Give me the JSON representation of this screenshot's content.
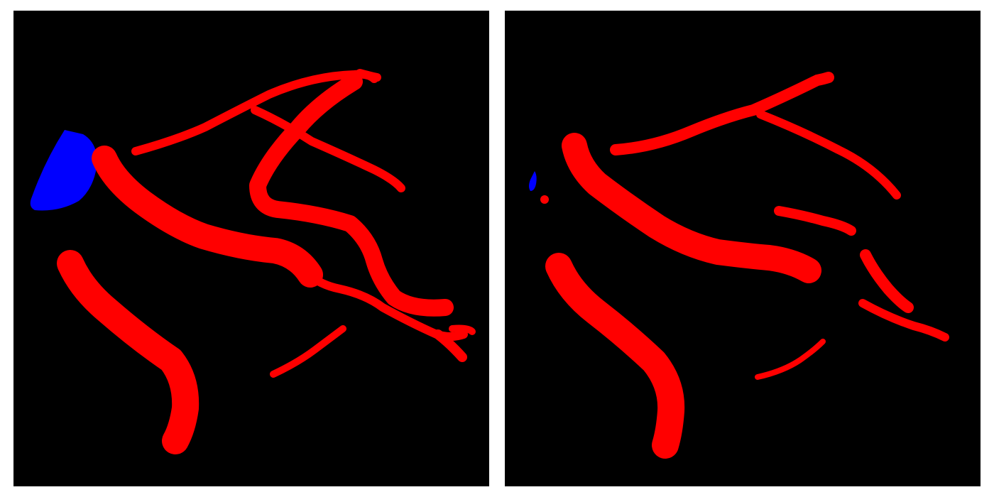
{
  "figure": {
    "background_color": "#ffffff",
    "panels": [
      {
        "id": "left",
        "background_color": "#000000",
        "class_colors": {
          "vessel": "#ff0000",
          "region": "#0000ff"
        }
      },
      {
        "id": "right",
        "background_color": "#000000",
        "class_colors": {
          "vessel": "#ff0000",
          "region": "#0000ff"
        }
      }
    ]
  }
}
